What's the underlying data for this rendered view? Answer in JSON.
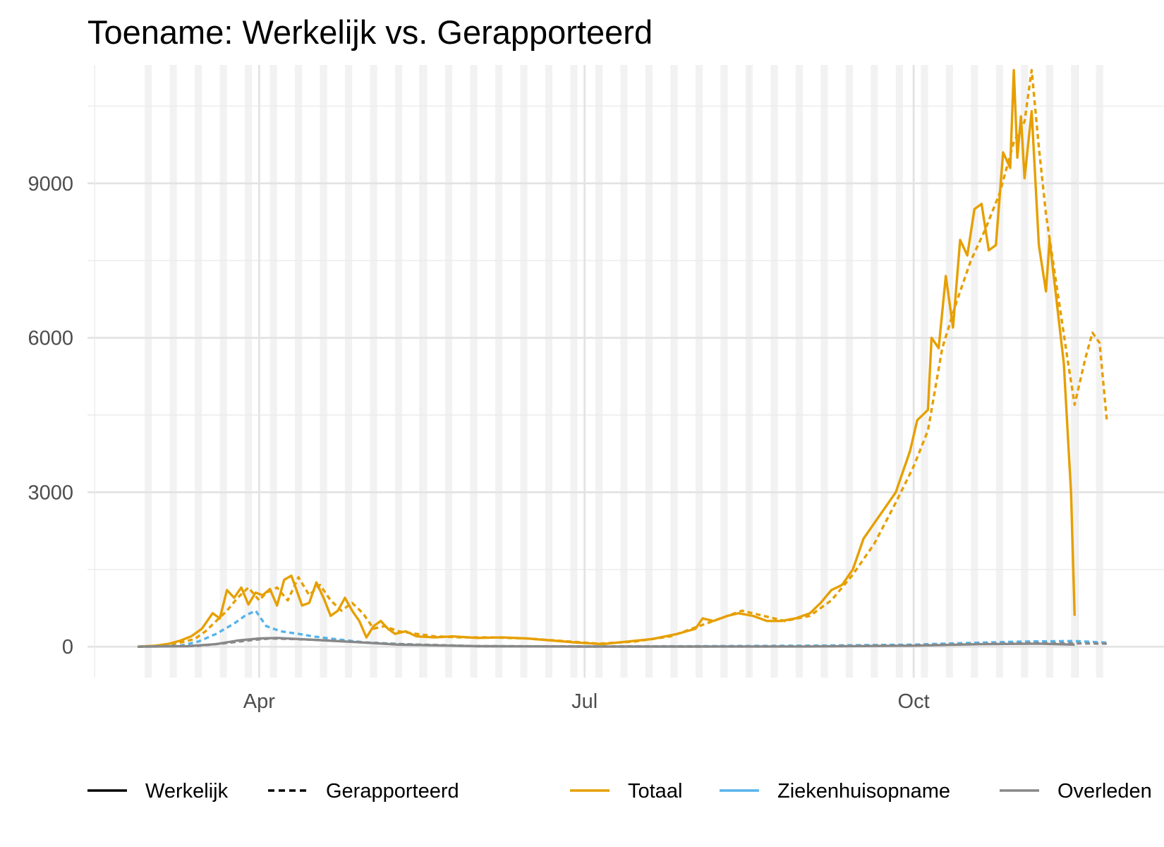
{
  "chart_data": {
    "type": "line",
    "title": "Toename: Werkelijk vs. Gerapporteerd",
    "xlabel": "",
    "ylabel": "",
    "x_range": [
      "2020-02-27",
      "2020-11-26"
    ],
    "ylim": [
      -600,
      11300
    ],
    "x_ticks": [
      {
        "date": "2020-04-01",
        "label": "Apr"
      },
      {
        "date": "2020-07-01",
        "label": "Jul"
      },
      {
        "date": "2020-10-01",
        "label": "Oct"
      }
    ],
    "x_minor_grid": [
      "2020-02-15",
      "2020-05-16",
      "2020-08-16",
      "2020-11-16"
    ],
    "y_ticks": [
      0,
      3000,
      6000,
      9000
    ],
    "y_minor_grid": [
      1500,
      4500,
      7500,
      10500
    ],
    "grid": true,
    "weekend_shading": true,
    "legend_position": "bottom",
    "legend_linetype": [
      {
        "label": "Werkelijk",
        "dash": "solid"
      },
      {
        "label": "Gerapporteerd",
        "dash": "dashed"
      }
    ],
    "legend_color": [
      {
        "label": "Totaal",
        "color": "#E69F00"
      },
      {
        "label": "Ziekenhuisopname",
        "color": "#56B4E9"
      },
      {
        "label": "Overleden",
        "color": "#888888"
      }
    ],
    "series": [
      {
        "name": "Totaal",
        "type": "Werkelijk",
        "color": "#E69F00",
        "dash": "solid",
        "points": [
          [
            "2020-02-27",
            0
          ],
          [
            "2020-03-03",
            20
          ],
          [
            "2020-03-07",
            60
          ],
          [
            "2020-03-10",
            120
          ],
          [
            "2020-03-13",
            200
          ],
          [
            "2020-03-16",
            350
          ],
          [
            "2020-03-19",
            650
          ],
          [
            "2020-03-21",
            550
          ],
          [
            "2020-03-23",
            1100
          ],
          [
            "2020-03-25",
            950
          ],
          [
            "2020-03-27",
            1150
          ],
          [
            "2020-03-29",
            820
          ],
          [
            "2020-03-31",
            1050
          ],
          [
            "2020-04-02",
            1000
          ],
          [
            "2020-04-04",
            1120
          ],
          [
            "2020-04-06",
            800
          ],
          [
            "2020-04-08",
            1300
          ],
          [
            "2020-04-10",
            1380
          ],
          [
            "2020-04-13",
            800
          ],
          [
            "2020-04-15",
            850
          ],
          [
            "2020-04-17",
            1250
          ],
          [
            "2020-04-19",
            950
          ],
          [
            "2020-04-21",
            600
          ],
          [
            "2020-04-23",
            700
          ],
          [
            "2020-04-25",
            950
          ],
          [
            "2020-04-27",
            700
          ],
          [
            "2020-04-29",
            500
          ],
          [
            "2020-05-01",
            180
          ],
          [
            "2020-05-03",
            400
          ],
          [
            "2020-05-05",
            500
          ],
          [
            "2020-05-07",
            350
          ],
          [
            "2020-05-09",
            250
          ],
          [
            "2020-05-12",
            300
          ],
          [
            "2020-05-15",
            200
          ],
          [
            "2020-05-20",
            180
          ],
          [
            "2020-05-25",
            200
          ],
          [
            "2020-06-01",
            170
          ],
          [
            "2020-06-08",
            180
          ],
          [
            "2020-06-15",
            160
          ],
          [
            "2020-06-22",
            120
          ],
          [
            "2020-06-29",
            80
          ],
          [
            "2020-07-06",
            50
          ],
          [
            "2020-07-13",
            100
          ],
          [
            "2020-07-20",
            150
          ],
          [
            "2020-07-27",
            250
          ],
          [
            "2020-08-01",
            350
          ],
          [
            "2020-08-03",
            550
          ],
          [
            "2020-08-06",
            500
          ],
          [
            "2020-08-10",
            600
          ],
          [
            "2020-08-13",
            650
          ],
          [
            "2020-08-17",
            600
          ],
          [
            "2020-08-21",
            500
          ],
          [
            "2020-08-25",
            500
          ],
          [
            "2020-08-29",
            550
          ],
          [
            "2020-09-02",
            650
          ],
          [
            "2020-09-05",
            850
          ],
          [
            "2020-09-08",
            1100
          ],
          [
            "2020-09-11",
            1200
          ],
          [
            "2020-09-14",
            1500
          ],
          [
            "2020-09-17",
            2100
          ],
          [
            "2020-09-20",
            2400
          ],
          [
            "2020-09-23",
            2700
          ],
          [
            "2020-09-26",
            3000
          ],
          [
            "2020-09-28",
            3400
          ],
          [
            "2020-09-30",
            3800
          ],
          [
            "2020-10-02",
            4400
          ],
          [
            "2020-10-05",
            4600
          ],
          [
            "2020-10-06",
            6000
          ],
          [
            "2020-10-08",
            5800
          ],
          [
            "2020-10-10",
            7200
          ],
          [
            "2020-10-12",
            6200
          ],
          [
            "2020-10-14",
            7900
          ],
          [
            "2020-10-16",
            7600
          ],
          [
            "2020-10-18",
            8500
          ],
          [
            "2020-10-20",
            8600
          ],
          [
            "2020-10-22",
            7700
          ],
          [
            "2020-10-24",
            7800
          ],
          [
            "2020-10-26",
            9600
          ],
          [
            "2020-10-28",
            9300
          ],
          [
            "2020-10-29",
            11200
          ],
          [
            "2020-10-30",
            9500
          ],
          [
            "2020-10-31",
            10300
          ],
          [
            "2020-11-01",
            9100
          ],
          [
            "2020-11-03",
            10400
          ],
          [
            "2020-11-05",
            7800
          ],
          [
            "2020-11-07",
            6900
          ],
          [
            "2020-11-08",
            7900
          ],
          [
            "2020-11-10",
            6700
          ],
          [
            "2020-11-12",
            5500
          ],
          [
            "2020-11-14",
            3000
          ],
          [
            "2020-11-15",
            600
          ]
        ]
      },
      {
        "name": "Totaal",
        "type": "Gerapporteerd",
        "color": "#E69F00",
        "dash": "dashed",
        "points": [
          [
            "2020-02-27",
            0
          ],
          [
            "2020-03-05",
            20
          ],
          [
            "2020-03-10",
            80
          ],
          [
            "2020-03-14",
            150
          ],
          [
            "2020-03-17",
            300
          ],
          [
            "2020-03-20",
            500
          ],
          [
            "2020-03-23",
            700
          ],
          [
            "2020-03-26",
            950
          ],
          [
            "2020-03-29",
            1150
          ],
          [
            "2020-04-01",
            900
          ],
          [
            "2020-04-03",
            1050
          ],
          [
            "2020-04-06",
            1150
          ],
          [
            "2020-04-09",
            900
          ],
          [
            "2020-04-12",
            1350
          ],
          [
            "2020-04-15",
            1000
          ],
          [
            "2020-04-18",
            1200
          ],
          [
            "2020-04-21",
            900
          ],
          [
            "2020-04-24",
            700
          ],
          [
            "2020-04-27",
            850
          ],
          [
            "2020-04-30",
            650
          ],
          [
            "2020-05-03",
            350
          ],
          [
            "2020-05-06",
            400
          ],
          [
            "2020-05-10",
            300
          ],
          [
            "2020-05-15",
            250
          ],
          [
            "2020-05-20",
            200
          ],
          [
            "2020-05-28",
            180
          ],
          [
            "2020-06-05",
            180
          ],
          [
            "2020-06-15",
            160
          ],
          [
            "2020-06-25",
            110
          ],
          [
            "2020-07-05",
            60
          ],
          [
            "2020-07-15",
            100
          ],
          [
            "2020-07-25",
            200
          ],
          [
            "2020-08-02",
            400
          ],
          [
            "2020-08-08",
            550
          ],
          [
            "2020-08-14",
            700
          ],
          [
            "2020-08-20",
            600
          ],
          [
            "2020-08-26",
            500
          ],
          [
            "2020-09-02",
            600
          ],
          [
            "2020-09-08",
            900
          ],
          [
            "2020-09-14",
            1400
          ],
          [
            "2020-09-20",
            2000
          ],
          [
            "2020-09-26",
            2800
          ],
          [
            "2020-10-01",
            3500
          ],
          [
            "2020-10-05",
            4200
          ],
          [
            "2020-10-09",
            5800
          ],
          [
            "2020-10-13",
            6700
          ],
          [
            "2020-10-17",
            7500
          ],
          [
            "2020-10-21",
            8100
          ],
          [
            "2020-10-25",
            8800
          ],
          [
            "2020-10-29",
            9800
          ],
          [
            "2020-11-01",
            10200
          ],
          [
            "2020-11-03",
            11200
          ],
          [
            "2020-11-05",
            9700
          ],
          [
            "2020-11-07",
            8400
          ],
          [
            "2020-11-10",
            7000
          ],
          [
            "2020-11-13",
            5600
          ],
          [
            "2020-11-15",
            4700
          ],
          [
            "2020-11-18",
            5600
          ],
          [
            "2020-11-20",
            6100
          ],
          [
            "2020-11-22",
            5900
          ],
          [
            "2020-11-24",
            4400
          ]
        ]
      },
      {
        "name": "Ziekenhuisopname",
        "type": "Gerapporteerd",
        "color": "#56B4E9",
        "dash": "dashed",
        "points": [
          [
            "2020-02-27",
            0
          ],
          [
            "2020-03-10",
            20
          ],
          [
            "2020-03-15",
            100
          ],
          [
            "2020-03-20",
            250
          ],
          [
            "2020-03-25",
            450
          ],
          [
            "2020-03-28",
            600
          ],
          [
            "2020-03-31",
            700
          ],
          [
            "2020-04-03",
            400
          ],
          [
            "2020-04-07",
            300
          ],
          [
            "2020-04-12",
            250
          ],
          [
            "2020-04-16",
            200
          ],
          [
            "2020-04-22",
            150
          ],
          [
            "2020-05-01",
            80
          ],
          [
            "2020-05-15",
            40
          ],
          [
            "2020-06-01",
            10
          ],
          [
            "2020-07-01",
            5
          ],
          [
            "2020-08-01",
            10
          ],
          [
            "2020-09-01",
            20
          ],
          [
            "2020-10-01",
            40
          ],
          [
            "2020-10-15",
            70
          ],
          [
            "2020-11-01",
            100
          ],
          [
            "2020-11-15",
            110
          ],
          [
            "2020-11-24",
            80
          ]
        ]
      },
      {
        "name": "Overleden",
        "type": "Werkelijk",
        "color": "#888888",
        "dash": "solid",
        "points": [
          [
            "2020-02-27",
            0
          ],
          [
            "2020-03-12",
            10
          ],
          [
            "2020-03-20",
            50
          ],
          [
            "2020-03-26",
            120
          ],
          [
            "2020-04-01",
            160
          ],
          [
            "2020-04-06",
            170
          ],
          [
            "2020-04-12",
            150
          ],
          [
            "2020-04-20",
            120
          ],
          [
            "2020-04-28",
            90
          ],
          [
            "2020-05-10",
            40
          ],
          [
            "2020-06-01",
            10
          ],
          [
            "2020-07-01",
            3
          ],
          [
            "2020-08-01",
            3
          ],
          [
            "2020-09-01",
            5
          ],
          [
            "2020-10-01",
            20
          ],
          [
            "2020-10-20",
            50
          ],
          [
            "2020-11-05",
            60
          ],
          [
            "2020-11-15",
            40
          ]
        ]
      },
      {
        "name": "Overleden",
        "type": "Gerapporteerd",
        "color": "#888888",
        "dash": "dashed",
        "points": [
          [
            "2020-02-27",
            0
          ],
          [
            "2020-03-15",
            15
          ],
          [
            "2020-03-24",
            80
          ],
          [
            "2020-03-30",
            130
          ],
          [
            "2020-04-04",
            160
          ],
          [
            "2020-04-10",
            150
          ],
          [
            "2020-04-18",
            130
          ],
          [
            "2020-04-26",
            100
          ],
          [
            "2020-05-10",
            50
          ],
          [
            "2020-06-01",
            12
          ],
          [
            "2020-07-01",
            4
          ],
          [
            "2020-08-01",
            3
          ],
          [
            "2020-09-01",
            6
          ],
          [
            "2020-10-01",
            25
          ],
          [
            "2020-10-20",
            55
          ],
          [
            "2020-11-05",
            70
          ],
          [
            "2020-11-15",
            65
          ],
          [
            "2020-11-24",
            60
          ]
        ]
      }
    ]
  }
}
